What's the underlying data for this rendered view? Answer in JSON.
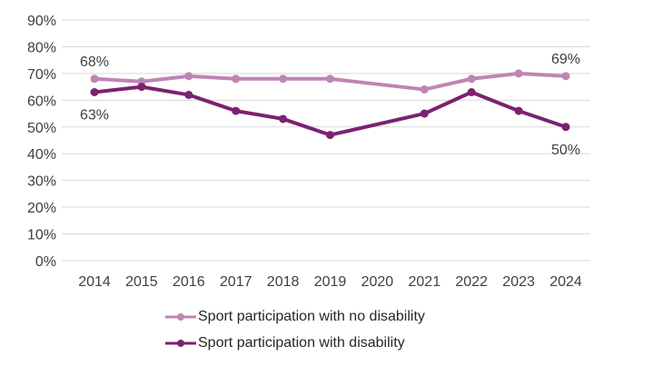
{
  "chart_data": {
    "type": "line",
    "categories": [
      "2014",
      "2015",
      "2016",
      "2017",
      "2018",
      "2019",
      "2020",
      "2021",
      "2022",
      "2023",
      "2024"
    ],
    "ylim": [
      0,
      90
    ],
    "yticks": [
      "0%",
      "10%",
      "20%",
      "30%",
      "40%",
      "50%",
      "60%",
      "70%",
      "80%",
      "90%"
    ],
    "grid": true,
    "legend_position": "bottom",
    "series": [
      {
        "name": "Sport participation with no disability",
        "color": "#C084B4",
        "values": [
          68,
          67,
          69,
          68,
          68,
          68,
          null,
          64,
          68,
          70,
          69
        ]
      },
      {
        "name": "Sport participation with disability",
        "color": "#7B2270",
        "values": [
          63,
          65,
          62,
          56,
          53,
          47,
          null,
          55,
          63,
          56,
          50
        ]
      }
    ],
    "annotations": [
      {
        "text": "68%",
        "series": 0,
        "category": "2014",
        "placement": "above"
      },
      {
        "text": "63%",
        "series": 1,
        "category": "2014",
        "placement": "below"
      },
      {
        "text": "69%",
        "series": 0,
        "category": "2024",
        "placement": "above"
      },
      {
        "text": "50%",
        "series": 1,
        "category": "2024",
        "placement": "below"
      }
    ]
  }
}
